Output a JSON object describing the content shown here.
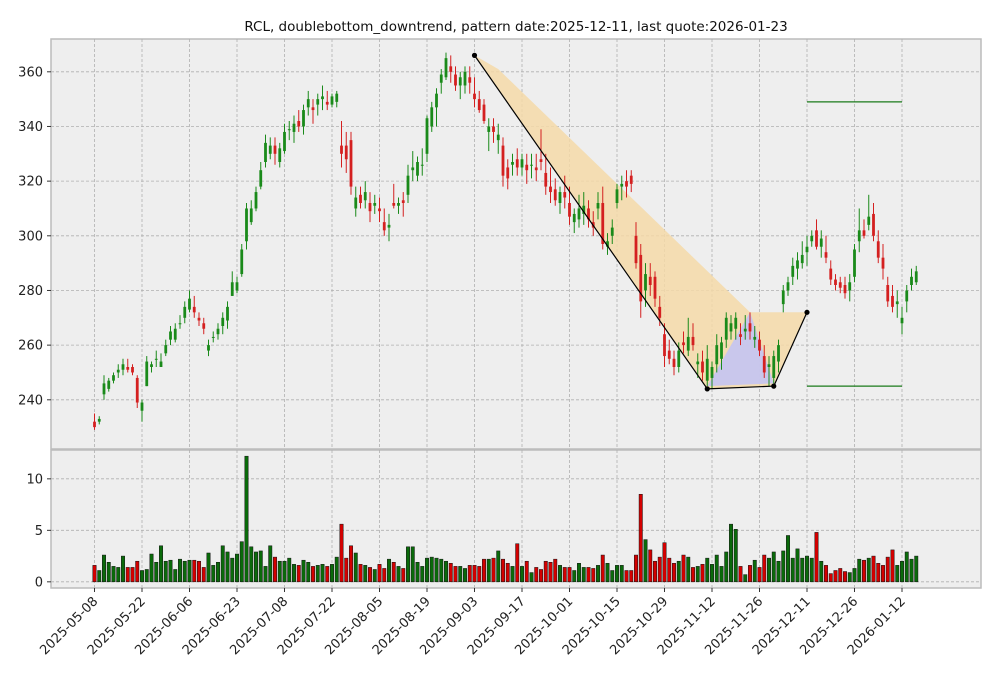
{
  "chart_data": {
    "type": "candlestick",
    "title": "RCL, doublebottom_downtrend, pattern date:2025-12-11, last quote:2026-01-23",
    "price_axis": {
      "ylim": [
        222,
        372
      ],
      "ticks": [
        240,
        260,
        280,
        300,
        320,
        340,
        360
      ]
    },
    "volume_axis": {
      "ylim": [
        -0.6,
        12.8
      ],
      "ticks": [
        0,
        5,
        10
      ]
    },
    "x_tick_labels": [
      "2025-05-08",
      "2025-05-22",
      "2025-06-06",
      "2025-06-23",
      "2025-07-08",
      "2025-07-22",
      "2025-08-05",
      "2025-08-19",
      "2025-09-03",
      "2025-09-17",
      "2025-10-01",
      "2025-10-15",
      "2025-10-29",
      "2025-11-12",
      "2025-11-26",
      "2025-12-11",
      "2025-12-26",
      "2026-01-12"
    ],
    "x_tick_index": [
      0,
      10,
      20,
      30,
      40,
      50,
      60,
      70,
      80,
      90,
      100,
      110,
      120,
      130,
      140,
      150,
      160,
      170
    ],
    "grid": true,
    "colors": {
      "up": "#1a8a1a",
      "down": "#d42020",
      "vol_up": "#0a6a0a",
      "vol_down": "#d40000",
      "band": "#f5d9a8",
      "triangle": "#c4c4f2",
      "level": "#1a7a1a",
      "panel_bg": "#eeeeee"
    },
    "pattern": {
      "band_points": [
        [
          80,
          366
        ],
        [
          85,
          361
        ],
        [
          138,
          272
        ],
        [
          150,
          272
        ]
      ],
      "band_lower": [
        [
          80,
          366
        ],
        [
          129,
          244
        ],
        [
          143,
          245
        ],
        [
          150,
          272
        ]
      ],
      "polyline": [
        [
          80,
          366
        ],
        [
          129,
          244
        ],
        [
          143,
          245
        ],
        [
          150,
          272
        ]
      ],
      "triangle": [
        [
          129,
          245
        ],
        [
          138,
          272
        ],
        [
          143,
          246
        ]
      ],
      "levels": [
        {
          "from": 150,
          "to": 170,
          "y": 349
        },
        {
          "from": 150,
          "to": 170,
          "y": 245
        }
      ]
    },
    "bars": [
      [
        0,
        232,
        235,
        229,
        230,
        1.6
      ],
      [
        1,
        232,
        234,
        231,
        233,
        1.1
      ],
      [
        2,
        242,
        249,
        240,
        246,
        2.6
      ],
      [
        3,
        244,
        248,
        243,
        247,
        1.9
      ],
      [
        4,
        247,
        250,
        246,
        249,
        1.5
      ],
      [
        5,
        250,
        253,
        248,
        251,
        1.4
      ],
      [
        6,
        251,
        255,
        249,
        253,
        2.5
      ],
      [
        7,
        252,
        255,
        250,
        251,
        1.4
      ],
      [
        8,
        252,
        253,
        249,
        250,
        1.4
      ],
      [
        9,
        248,
        249,
        237,
        239,
        2.0
      ],
      [
        10,
        236,
        240,
        232,
        239,
        1.1
      ],
      [
        11,
        245,
        256,
        245,
        254,
        1.2
      ],
      [
        12,
        252,
        254,
        250,
        253,
        2.7
      ],
      [
        13,
        255,
        258,
        252,
        255,
        1.9
      ],
      [
        14,
        252,
        257,
        252,
        254,
        3.5
      ],
      [
        15,
        257,
        262,
        256,
        260,
        2.0
      ],
      [
        16,
        262,
        267,
        260,
        265,
        2.1
      ],
      [
        17,
        262,
        268,
        261,
        266,
        1.2
      ],
      [
        18,
        268,
        271,
        266,
        268,
        2.2
      ],
      [
        19,
        270,
        276,
        268,
        274,
        2.0
      ],
      [
        20,
        273,
        280,
        272,
        277,
        2.1
      ],
      [
        21,
        274,
        278,
        270,
        272,
        2.1
      ],
      [
        22,
        270,
        272,
        267,
        269,
        2.0
      ],
      [
        23,
        268,
        270,
        264,
        266,
        1.4
      ],
      [
        24,
        258,
        262,
        256,
        260,
        2.8
      ],
      [
        25,
        263,
        265,
        261,
        263,
        1.6
      ],
      [
        26,
        264,
        268,
        262,
        266,
        1.9
      ],
      [
        27,
        267,
        272,
        264,
        270,
        3.5
      ],
      [
        28,
        269,
        276,
        266,
        274,
        2.9
      ],
      [
        29,
        278,
        287,
        278,
        283,
        2.3
      ],
      [
        30,
        280,
        285,
        279,
        283,
        2.7
      ],
      [
        31,
        286,
        297,
        285,
        295,
        3.9
      ],
      [
        32,
        298,
        312,
        295,
        310,
        12.2
      ],
      [
        33,
        305,
        313,
        304,
        310,
        3.4
      ],
      [
        34,
        310,
        318,
        309,
        316,
        2.9
      ],
      [
        35,
        318,
        327,
        317,
        324,
        3.0
      ],
      [
        36,
        327,
        337,
        325,
        334,
        1.5
      ],
      [
        37,
        330,
        336,
        328,
        333,
        3.5
      ],
      [
        38,
        333,
        336,
        326,
        330,
        2.4
      ],
      [
        39,
        327,
        334,
        325,
        332,
        2.0
      ],
      [
        40,
        331,
        341,
        330,
        338,
        2.0
      ],
      [
        41,
        339,
        342,
        335,
        339,
        2.3
      ],
      [
        42,
        338,
        344,
        334,
        341,
        1.7
      ],
      [
        43,
        342,
        346,
        338,
        340,
        1.6
      ],
      [
        44,
        340,
        348,
        337,
        346,
        2.1
      ],
      [
        45,
        347,
        353,
        344,
        350,
        1.9
      ],
      [
        46,
        347,
        350,
        341,
        346,
        1.5
      ],
      [
        47,
        348,
        352,
        344,
        350,
        1.6
      ],
      [
        48,
        350,
        355,
        346,
        351,
        1.7
      ],
      [
        49,
        349,
        353,
        346,
        348,
        1.5
      ],
      [
        50,
        348,
        352,
        347,
        351,
        1.7
      ],
      [
        51,
        349,
        353,
        347,
        352,
        2.4
      ],
      [
        52,
        333,
        342,
        325,
        330,
        5.6
      ],
      [
        53,
        333,
        338,
        323,
        328,
        2.3
      ],
      [
        54,
        335,
        338,
        315,
        318,
        3.5
      ],
      [
        55,
        310,
        318,
        307,
        314,
        2.8
      ],
      [
        56,
        315,
        318,
        310,
        312,
        1.7
      ],
      [
        57,
        313,
        320,
        310,
        316,
        1.6
      ],
      [
        58,
        312,
        316,
        305,
        309,
        1.4
      ],
      [
        59,
        311,
        315,
        308,
        312,
        1.2
      ],
      [
        60,
        310,
        314,
        305,
        309,
        1.7
      ],
      [
        61,
        305,
        310,
        300,
        302,
        1.3
      ],
      [
        62,
        303,
        308,
        298,
        304,
        2.2
      ],
      [
        63,
        312,
        319,
        310,
        311,
        1.9
      ],
      [
        64,
        311,
        314,
        308,
        312,
        1.5
      ],
      [
        65,
        313,
        316,
        307,
        312,
        1.3
      ],
      [
        66,
        315,
        326,
        312,
        322,
        3.4
      ],
      [
        67,
        324,
        331,
        320,
        325,
        3.4
      ],
      [
        68,
        322,
        329,
        320,
        327,
        1.9
      ],
      [
        69,
        326,
        332,
        322,
        326,
        1.5
      ],
      [
        70,
        330,
        344,
        327,
        343,
        2.3
      ],
      [
        71,
        340,
        349,
        338,
        347,
        2.4
      ],
      [
        72,
        347,
        354,
        340,
        352,
        2.3
      ],
      [
        73,
        356,
        361,
        352,
        359,
        2.2
      ],
      [
        74,
        358,
        367,
        357,
        365,
        2.0
      ],
      [
        75,
        362,
        366,
        356,
        360,
        1.8
      ],
      [
        76,
        359,
        362,
        353,
        355,
        1.5
      ],
      [
        77,
        355,
        360,
        350,
        358,
        1.5
      ],
      [
        78,
        355,
        362,
        352,
        360,
        1.3
      ],
      [
        79,
        358,
        362,
        352,
        356,
        1.6
      ],
      [
        80,
        352,
        358,
        347,
        350,
        1.6
      ],
      [
        81,
        350,
        353,
        345,
        346,
        1.5
      ],
      [
        82,
        348,
        350,
        341,
        342,
        2.2
      ],
      [
        83,
        338,
        343,
        331,
        340,
        2.2
      ],
      [
        84,
        340,
        343,
        334,
        338,
        2.3
      ],
      [
        85,
        335,
        341,
        330,
        337,
        3.0
      ],
      [
        86,
        333,
        336,
        318,
        322,
        2.2
      ],
      [
        87,
        325,
        328,
        317,
        321,
        1.8
      ],
      [
        88,
        326,
        330,
        322,
        327,
        1.5
      ],
      [
        89,
        328,
        332,
        322,
        325,
        3.7
      ],
      [
        90,
        325,
        330,
        322,
        328,
        1.5
      ],
      [
        91,
        326,
        330,
        319,
        324,
        2.0
      ],
      [
        92,
        326,
        330,
        321,
        326,
        0.9
      ],
      [
        93,
        325,
        330,
        320,
        324,
        1.4
      ],
      [
        94,
        328,
        339,
        324,
        327,
        1.2
      ],
      [
        95,
        323,
        330,
        315,
        318,
        2.0
      ],
      [
        96,
        318,
        325,
        312,
        316,
        1.9
      ],
      [
        97,
        317,
        321,
        311,
        313,
        2.2
      ],
      [
        98,
        312,
        318,
        308,
        316,
        1.6
      ],
      [
        99,
        316,
        322,
        310,
        314,
        1.4
      ],
      [
        100,
        312,
        318,
        304,
        307,
        1.4
      ],
      [
        101,
        305,
        310,
        301,
        308,
        1.1
      ],
      [
        102,
        306,
        315,
        303,
        310,
        1.8
      ],
      [
        103,
        308,
        316,
        304,
        311,
        1.4
      ],
      [
        104,
        310,
        313,
        303,
        306,
        1.4
      ],
      [
        105,
        305,
        309,
        300,
        303,
        1.3
      ],
      [
        106,
        310,
        316,
        306,
        312,
        1.6
      ],
      [
        107,
        312,
        318,
        295,
        297,
        2.6
      ],
      [
        108,
        296,
        301,
        293,
        298,
        1.8
      ],
      [
        109,
        300,
        306,
        297,
        303,
        1.1
      ],
      [
        110,
        312,
        319,
        310,
        317,
        1.6
      ],
      [
        111,
        318,
        322,
        313,
        319,
        1.6
      ],
      [
        112,
        320,
        324,
        314,
        318,
        1.1
      ],
      [
        113,
        322,
        324,
        316,
        319,
        1.1
      ],
      [
        114,
        300,
        305,
        288,
        290,
        2.6
      ],
      [
        115,
        293,
        297,
        270,
        276,
        8.5
      ],
      [
        116,
        280,
        290,
        274,
        286,
        4.1
      ],
      [
        117,
        285,
        290,
        278,
        282,
        3.1
      ],
      [
        118,
        285,
        287,
        274,
        277,
        2.0
      ],
      [
        119,
        274,
        278,
        267,
        270,
        2.4
      ],
      [
        120,
        264,
        268,
        252,
        256,
        3.8
      ],
      [
        121,
        258,
        262,
        253,
        255,
        2.3
      ],
      [
        122,
        255,
        258,
        249,
        252,
        1.8
      ],
      [
        123,
        252,
        261,
        250,
        258,
        2.0
      ],
      [
        124,
        261,
        265,
        257,
        260,
        2.6
      ],
      [
        125,
        258,
        270,
        256,
        263,
        2.4
      ],
      [
        126,
        263,
        268,
        258,
        260,
        1.4
      ],
      [
        127,
        253,
        257,
        248,
        254,
        1.5
      ],
      [
        128,
        254,
        258,
        247,
        250,
        1.7
      ],
      [
        129,
        247,
        260,
        245,
        255,
        2.3
      ],
      [
        130,
        248,
        254,
        244,
        252,
        1.7
      ],
      [
        131,
        253,
        264,
        250,
        260,
        2.6
      ],
      [
        132,
        255,
        263,
        251,
        261,
        1.5
      ],
      [
        133,
        262,
        272,
        259,
        270,
        2.9
      ],
      [
        134,
        265,
        271,
        262,
        268,
        5.6
      ],
      [
        135,
        266,
        272,
        262,
        270,
        5.1
      ],
      [
        136,
        264,
        268,
        260,
        263,
        1.5
      ],
      [
        137,
        265,
        271,
        262,
        266,
        0.7
      ],
      [
        138,
        268,
        272,
        262,
        265,
        1.6
      ],
      [
        139,
        262,
        267,
        259,
        263,
        2.1
      ],
      [
        140,
        262,
        265,
        256,
        258,
        1.4
      ],
      [
        141,
        256,
        260,
        248,
        250,
        2.6
      ],
      [
        142,
        252,
        256,
        245,
        253,
        2.3
      ],
      [
        143,
        248,
        258,
        246,
        256,
        2.9
      ],
      [
        144,
        254,
        262,
        250,
        260,
        2.0
      ],
      [
        145,
        275,
        282,
        272,
        280,
        3.0
      ],
      [
        146,
        280,
        285,
        278,
        283,
        4.5
      ],
      [
        147,
        285,
        292,
        282,
        289,
        2.3
      ],
      [
        148,
        288,
        294,
        284,
        291,
        3.2
      ],
      [
        149,
        290,
        298,
        288,
        293,
        2.3
      ],
      [
        150,
        294,
        300,
        289,
        296,
        2.5
      ],
      [
        151,
        298,
        302,
        296,
        300,
        2.3
      ],
      [
        152,
        302,
        306,
        295,
        296,
        4.8
      ],
      [
        153,
        296,
        302,
        292,
        299,
        2.0
      ],
      [
        154,
        294,
        300,
        290,
        292,
        1.6
      ],
      [
        155,
        288,
        291,
        282,
        284,
        0.8
      ],
      [
        156,
        284,
        286,
        280,
        282,
        1.1
      ],
      [
        157,
        283,
        285,
        279,
        281,
        1.3
      ],
      [
        158,
        282,
        285,
        277,
        279,
        1.0
      ],
      [
        159,
        280,
        286,
        276,
        283,
        0.9
      ],
      [
        160,
        285,
        297,
        283,
        295,
        1.3
      ],
      [
        161,
        298,
        310,
        294,
        302,
        2.2
      ],
      [
        162,
        302,
        306,
        299,
        300,
        2.1
      ],
      [
        163,
        304,
        315,
        302,
        307,
        2.3
      ],
      [
        164,
        308,
        312,
        298,
        300,
        2.5
      ],
      [
        165,
        298,
        302,
        290,
        292,
        1.8
      ],
      [
        166,
        292,
        297,
        284,
        288,
        1.6
      ],
      [
        167,
        282,
        285,
        274,
        276,
        2.4
      ],
      [
        168,
        278,
        282,
        272,
        274,
        3.1
      ],
      [
        169,
        275,
        280,
        270,
        276,
        1.6
      ],
      [
        170,
        268,
        274,
        264,
        270,
        2.0
      ],
      [
        171,
        276,
        282,
        272,
        280,
        2.9
      ],
      [
        172,
        282,
        288,
        280,
        285,
        2.2
      ],
      [
        173,
        283,
        289,
        282,
        287,
        2.5
      ]
    ]
  }
}
